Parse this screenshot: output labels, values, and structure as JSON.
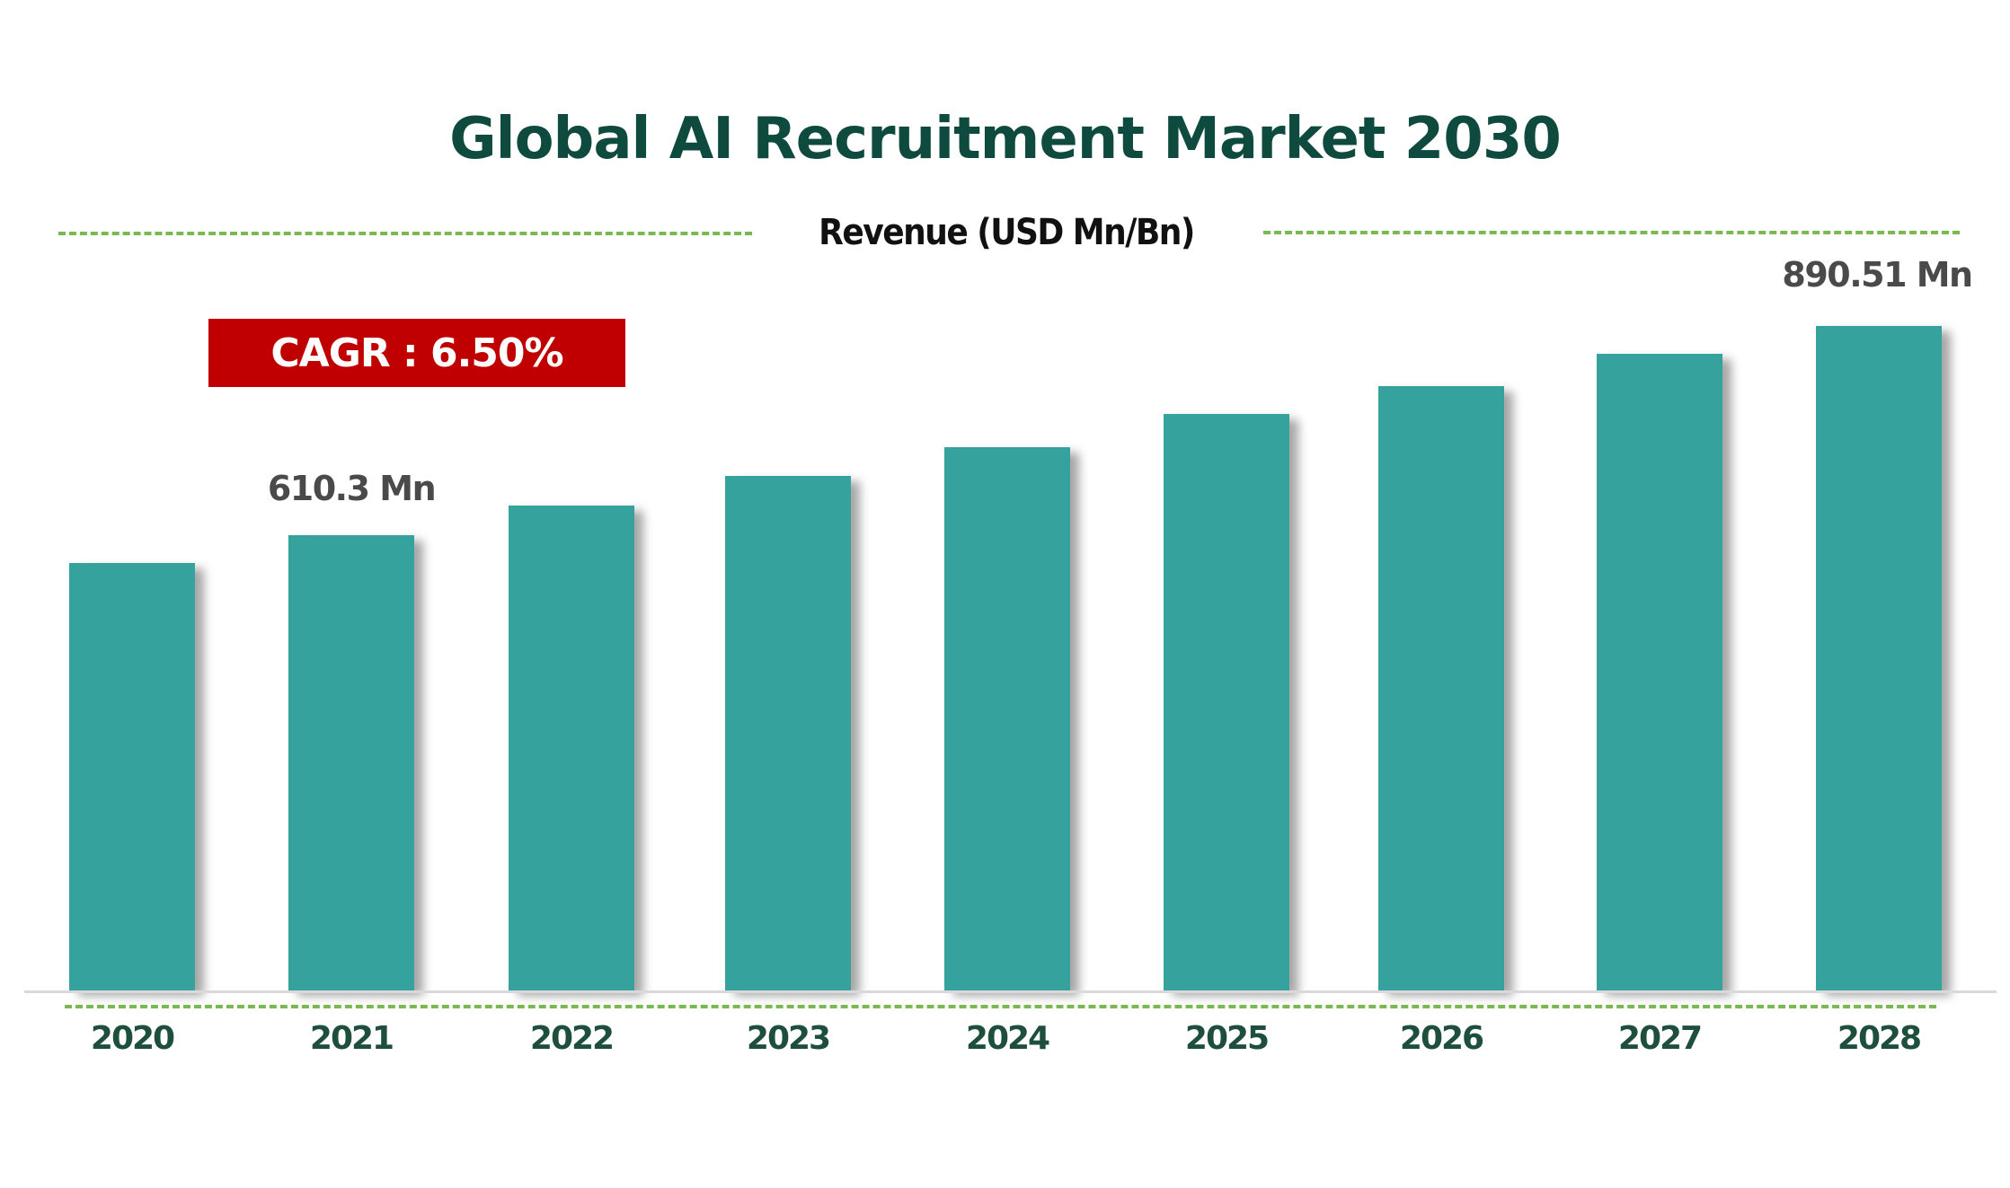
{
  "chart": {
    "title": "Global AI Recruitment Market 2030",
    "subtitle": "Revenue (USD Mn/Bn)",
    "cagr_label": "CAGR :  6.50%",
    "colors": {
      "bar": "#36a29e",
      "title": "#0f4a3f",
      "cagr_box": "#c00000",
      "dashed_lines": "#7ab951",
      "year_labels": "#1e4f3c"
    }
  },
  "chart_data": {
    "type": "bar",
    "title": "Global AI Recruitment Market 2030",
    "subtitle": "Revenue (USD Mn/Bn)",
    "xlabel": "",
    "ylabel": "Revenue (USD Mn/Bn)",
    "categories": [
      "2020",
      "2021",
      "2022",
      "2023",
      "2024",
      "2025",
      "2026",
      "2027",
      "2028"
    ],
    "values": [
      573,
      610.3,
      650,
      690,
      728,
      772,
      810,
      853,
      890.51
    ],
    "unit": "USD Mn",
    "data_labels": [
      {
        "category": "2021",
        "text": "610.3 Mn"
      },
      {
        "category": "2028",
        "text": "890.51 Mn"
      }
    ],
    "annotations": [
      "CAGR : 6.50%"
    ],
    "ylim": [
      0,
      900
    ],
    "grid": false,
    "legend": null
  },
  "labels": {
    "v2021": "610.3 Mn",
    "v2028": "890.51 Mn"
  }
}
